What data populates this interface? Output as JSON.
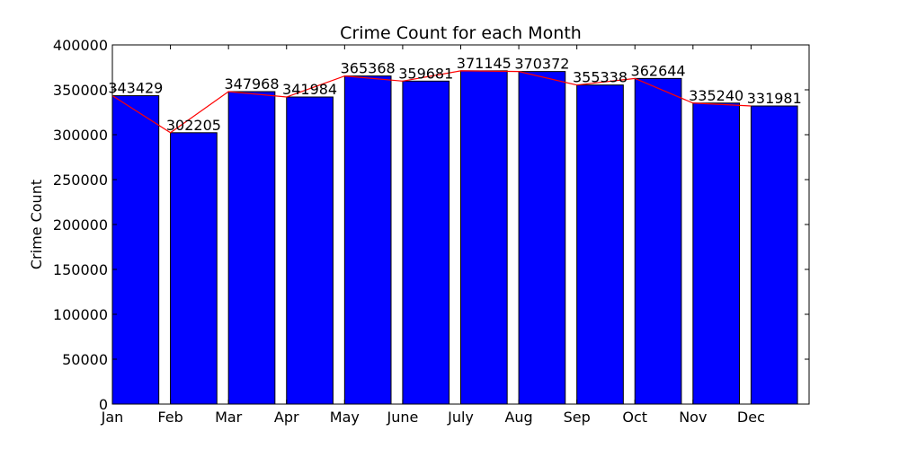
{
  "colors": {
    "bar": "#0000ff",
    "line": "#ff0000",
    "axis": "#000000",
    "background": "#ffffff"
  },
  "chart_data": {
    "type": "bar",
    "title": "Crime Count for each Month",
    "xlabel": "",
    "ylabel": "Crime Count",
    "categories": [
      "Jan",
      "Feb",
      "Mar",
      "Apr",
      "May",
      "June",
      "July",
      "Aug",
      "Sep",
      "Oct",
      "Nov",
      "Dec"
    ],
    "values": [
      343429,
      302205,
      347968,
      341984,
      365368,
      359681,
      371145,
      370372,
      355338,
      362644,
      335240,
      331981
    ],
    "data_labels": [
      "343429",
      "302205",
      "347968",
      "341984",
      "365368",
      "359681",
      "371145",
      "370372",
      "355338",
      "362644",
      "335240",
      "331981"
    ],
    "ylim": [
      0,
      400000
    ],
    "yticks": [
      0,
      50000,
      100000,
      150000,
      200000,
      250000,
      300000,
      350000,
      400000
    ],
    "ytick_labels": [
      "0",
      "50000",
      "100000",
      "150000",
      "200000",
      "250000",
      "300000",
      "350000",
      "400000"
    ],
    "overlay_line": true,
    "grid": false,
    "legend": "none"
  }
}
